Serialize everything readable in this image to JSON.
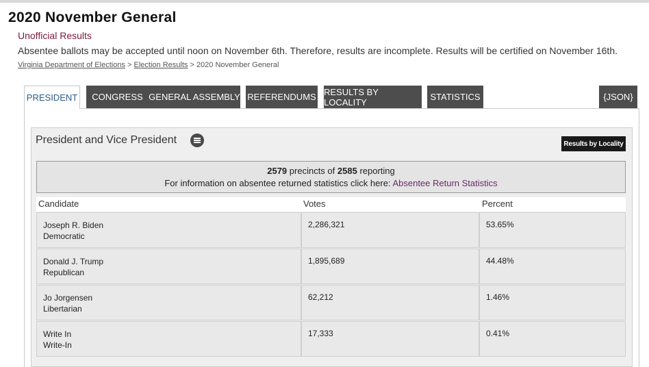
{
  "page": {
    "title": "2020 November General",
    "status": "Unofficial Results",
    "notice": "Absentee ballots may be accepted until noon on November 6th. Therefore, results are incomplete. Results will be certified on November 16th."
  },
  "breadcrumb": {
    "items": [
      "Virginia Department of Elections",
      "Election Results",
      "2020 November General"
    ],
    "separator": ">"
  },
  "tabs": [
    {
      "label": "PRESIDENT",
      "active": true
    },
    {
      "label": "CONGRESS"
    },
    {
      "label": "GENERAL ASSEMBLY"
    },
    {
      "label": "REFERENDUMS"
    },
    {
      "label": "RESULTS BY LOCALITY"
    },
    {
      "label": "STATISTICS"
    },
    {
      "label": "{JSON}"
    }
  ],
  "race": {
    "title": "President and Vice President",
    "locality_button": "Results by Locality",
    "reporting": {
      "precincts_reporting": "2579",
      "text_of": "precincts of",
      "precincts_total": "2585",
      "text_reporting": "reporting",
      "absentee_text": "For information on absentee returned statistics click here:",
      "absentee_link": "Absentee Return Statistics"
    },
    "columns": [
      "Candidate",
      "Votes",
      "Percent"
    ],
    "candidates": [
      {
        "name": "Joseph R. Biden",
        "party": "Democratic",
        "votes": "2,286,321",
        "percent": "53.65%"
      },
      {
        "name": "Donald J. Trump",
        "party": "Republican",
        "votes": "1,895,689",
        "percent": "44.48%"
      },
      {
        "name": "Jo Jorgensen",
        "party": "Libertarian",
        "votes": "62,212",
        "percent": "1.46%"
      },
      {
        "name": "Write In",
        "party": "Write-In",
        "votes": "17,333",
        "percent": "0.41%"
      }
    ]
  },
  "icons": {
    "race_menu": "list-icon"
  },
  "colors": {
    "tab_bg": "#4d4d4d",
    "status": "#7a1a3a",
    "link": "#6a2a6a",
    "active_tab_text": "#2a5a8a"
  }
}
